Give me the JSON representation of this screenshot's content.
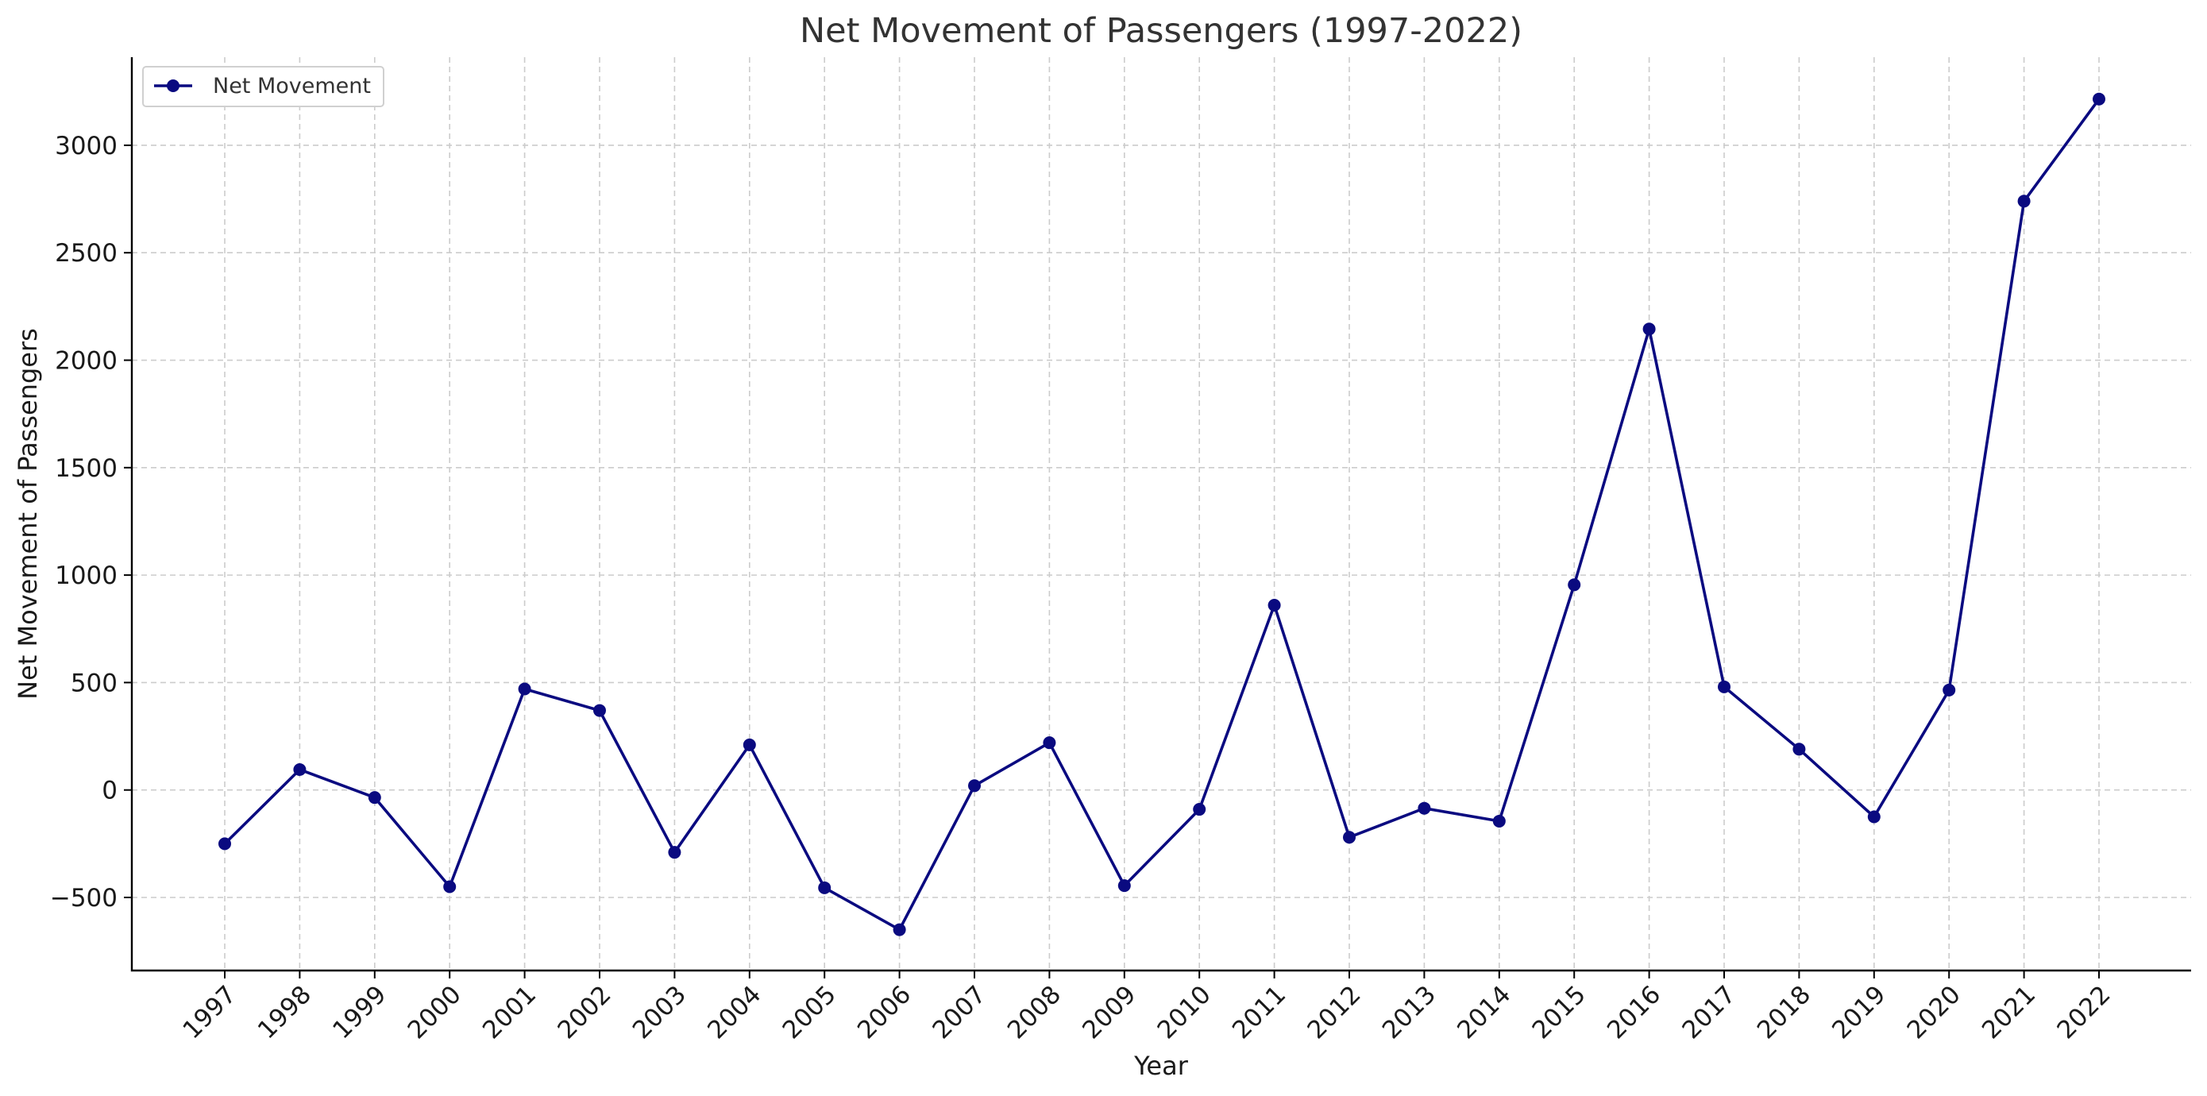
{
  "chart_data": {
    "type": "line",
    "title": "Net Movement of Passengers (1997-2022)",
    "xlabel": "Year",
    "ylabel": "Net Movement of Passengers",
    "x": [
      "1997",
      "1998",
      "1999",
      "2000",
      "2001",
      "2002",
      "2003",
      "2004",
      "2005",
      "2006",
      "2007",
      "2008",
      "2009",
      "2010",
      "2011",
      "2012",
      "2013",
      "2014",
      "2015",
      "2016",
      "2017",
      "2018",
      "2019",
      "2020",
      "2021",
      "2022"
    ],
    "series": [
      {
        "name": "Net Movement",
        "values": [
          -250,
          95,
          -35,
          -450,
          470,
          370,
          -290,
          210,
          -455,
          -650,
          20,
          220,
          -445,
          -90,
          860,
          -220,
          -85,
          -145,
          955,
          2145,
          480,
          190,
          -125,
          465,
          2740,
          3215
        ],
        "color": "#0a0a80"
      }
    ],
    "ylim": [
      -840,
      3410
    ],
    "yticks": [
      -500,
      0,
      500,
      1000,
      1500,
      2000,
      2500,
      3000
    ],
    "grid": true,
    "legend_position": "top-left"
  }
}
